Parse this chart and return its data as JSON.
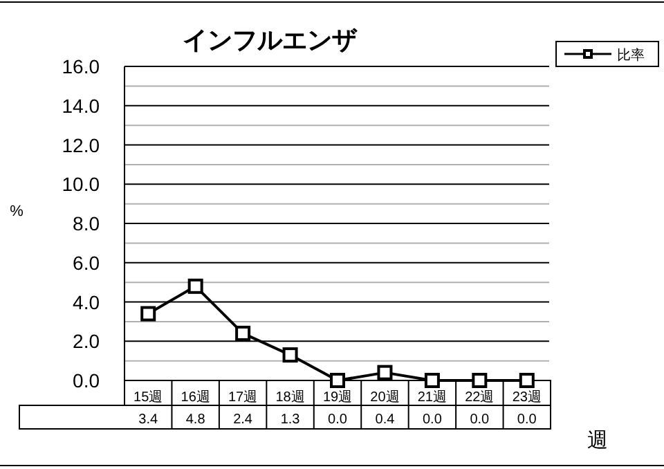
{
  "chart_data": {
    "type": "line",
    "title": "インフルエンザ",
    "xlabel": "週",
    "ylabel": "%",
    "categories": [
      "15週",
      "16週",
      "17週",
      "18週",
      "19週",
      "20週",
      "21週",
      "22週",
      "23週"
    ],
    "series": [
      {
        "name": "比率",
        "color": "#000000",
        "values": [
          3.4,
          4.8,
          2.4,
          1.3,
          0.0,
          0.4,
          0.0,
          0.0,
          0.0
        ],
        "value_labels": [
          "3.4",
          "4.8",
          "2.4",
          "1.3",
          "0.0",
          "0.4",
          "0.0",
          "0.0",
          "0.0"
        ]
      }
    ],
    "ylim": [
      0,
      16
    ],
    "yticks": [
      {
        "value": 0,
        "label": "0.0"
      },
      {
        "value": 1,
        "label": null
      },
      {
        "value": 2,
        "label": "2.0"
      },
      {
        "value": 3,
        "label": null
      },
      {
        "value": 4,
        "label": "4.0"
      },
      {
        "value": 5,
        "label": null
      },
      {
        "value": 6,
        "label": "6.0"
      },
      {
        "value": 7,
        "label": null
      },
      {
        "value": 8,
        "label": "8.0"
      },
      {
        "value": 9,
        "label": null
      },
      {
        "value": 10,
        "label": "10.0"
      },
      {
        "value": 11,
        "label": null
      },
      {
        "value": 12,
        "label": "12.0"
      },
      {
        "value": 13,
        "label": null
      },
      {
        "value": 14,
        "label": "14.0"
      },
      {
        "value": 15,
        "label": null
      },
      {
        "value": 16,
        "label": "16.0"
      }
    ],
    "grid": true,
    "legend": "top right",
    "marker": "square"
  }
}
